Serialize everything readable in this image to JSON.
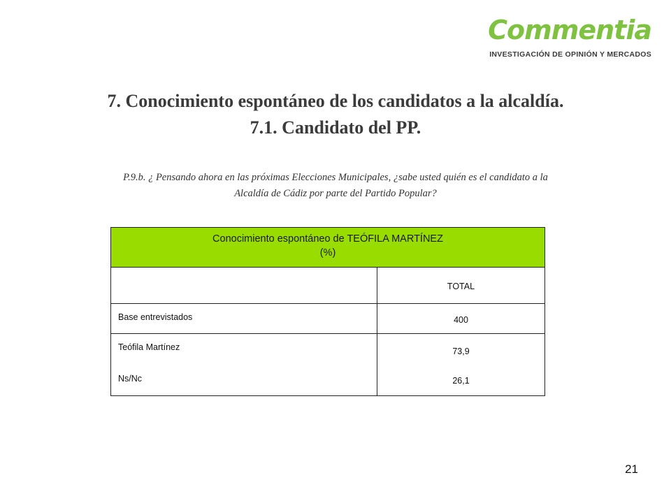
{
  "brand": {
    "name": "Commentia",
    "tagline": "INVESTIGACIÓN DE OPINIÓN Y MERCADOS",
    "color": "#7fc242"
  },
  "heading": {
    "line1": "7. Conocimiento espontáneo de los candidatos a la alcaldía.",
    "line2": "7.1. Candidato del PP."
  },
  "question": {
    "line1": "P.9.b.  ¿ Pensando ahora en las próximas Elecciones Municipales, ¿sabe usted quién es el candidato a la",
    "line2": "Alcaldía de Cádiz por parte del Partido Popular?"
  },
  "table": {
    "header_color": "#99dd00",
    "title": "Conocimiento espontáneo de TEÓFILA MARTÍNEZ",
    "subtitle": "(%)",
    "column": "TOTAL",
    "base_label": "Base entrevistados",
    "base_value": "400",
    "rows": [
      {
        "label": "Teófila Martínez",
        "value": "73,9"
      },
      {
        "label": "Ns/Nc",
        "value": "26,1"
      }
    ]
  },
  "page_number": "21"
}
